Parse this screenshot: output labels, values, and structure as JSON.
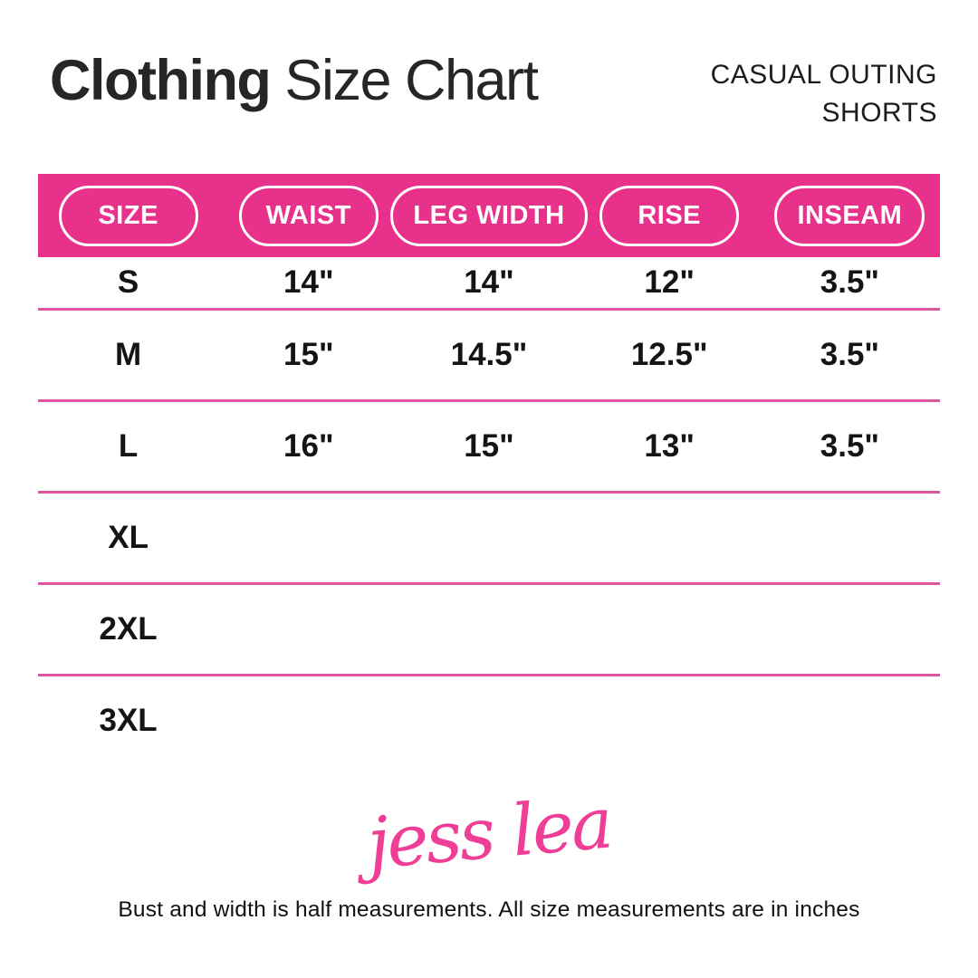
{
  "title": {
    "bold": "Clothing",
    "regular": " Size Chart"
  },
  "product": {
    "line1": "CASUAL OUTING",
    "line2": "SHORTS"
  },
  "chart_data": {
    "type": "table",
    "title": "Clothing Size Chart",
    "subtitle": "Casual Outing Shorts",
    "columns": [
      "SIZE",
      "WAIST",
      "LEG WIDTH",
      "RISE",
      "INSEAM"
    ],
    "rows": [
      [
        "S",
        "14\"",
        "14\"",
        "12\"",
        "3.5\""
      ],
      [
        "M",
        "15\"",
        "14.5\"",
        "12.5\"",
        "3.5\""
      ],
      [
        "L",
        "16\"",
        "15\"",
        "13\"",
        "3.5\""
      ],
      [
        "XL",
        "",
        "",
        "",
        ""
      ],
      [
        "2XL",
        "",
        "",
        "",
        ""
      ],
      [
        "3XL",
        "",
        "",
        "",
        ""
      ]
    ],
    "units": "inches"
  },
  "footer": {
    "logo": "jess lea",
    "note": "Bust and width is half measurements. All size measurements are in inches"
  },
  "colors": {
    "header_pink": "#E8318A",
    "divider_pink": "#E0549D",
    "logo_pink": "#EE3E95",
    "title_dark": "#262626"
  }
}
